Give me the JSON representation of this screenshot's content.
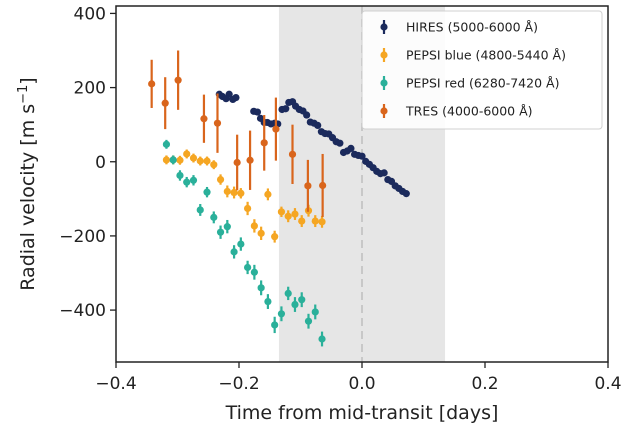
{
  "chart_data": {
    "type": "scatter",
    "xlabel": "Time from mid-transit [days]",
    "ylabel": "Radial velocity [m s",
    "ylabel_sup": "−1",
    "ylabel_tail": "]",
    "xlim": [
      -0.4,
      0.4
    ],
    "ylim": [
      -540,
      420
    ],
    "xticks": [
      -0.4,
      -0.2,
      0.0,
      0.2,
      0.4
    ],
    "xtick_labels": [
      "−0.4",
      "−0.2",
      "0.0",
      "0.2",
      "0.4"
    ],
    "yticks": [
      -400,
      -200,
      0,
      200,
      400
    ],
    "ytick_labels": [
      "−400",
      "−200",
      "0",
      "200",
      "400"
    ],
    "transit_window": [
      -0.135,
      0.135
    ],
    "mid_transit": 0.0,
    "grid": false,
    "legend_position": "top-right",
    "series": [
      {
        "name": "HIRES (5000-6000 Å)",
        "color": "#1b2a5c",
        "points": [
          {
            "x": -0.232,
            "y": 182,
            "err": 8
          },
          {
            "x": -0.227,
            "y": 176,
            "err": 8
          },
          {
            "x": -0.221,
            "y": 170,
            "err": 8
          },
          {
            "x": -0.216,
            "y": 182,
            "err": 8
          },
          {
            "x": -0.21,
            "y": 168,
            "err": 8
          },
          {
            "x": -0.205,
            "y": 173,
            "err": 8
          },
          {
            "x": -0.176,
            "y": 136,
            "err": 8
          },
          {
            "x": -0.17,
            "y": 134,
            "err": 8
          },
          {
            "x": -0.165,
            "y": 117,
            "err": 8
          },
          {
            "x": -0.159,
            "y": 106,
            "err": 8
          },
          {
            "x": -0.154,
            "y": 106,
            "err": 8
          },
          {
            "x": -0.148,
            "y": 102,
            "err": 8
          },
          {
            "x": -0.142,
            "y": 104,
            "err": 8
          },
          {
            "x": -0.137,
            "y": 102,
            "err": 8
          },
          {
            "x": -0.13,
            "y": 141,
            "err": 8
          },
          {
            "x": -0.124,
            "y": 143,
            "err": 8
          },
          {
            "x": -0.119,
            "y": 160,
            "err": 8
          },
          {
            "x": -0.113,
            "y": 162,
            "err": 8
          },
          {
            "x": -0.108,
            "y": 150,
            "err": 8
          },
          {
            "x": -0.102,
            "y": 141,
            "err": 8
          },
          {
            "x": -0.096,
            "y": 137,
            "err": 8
          },
          {
            "x": -0.09,
            "y": 126,
            "err": 8
          },
          {
            "x": -0.084,
            "y": 107,
            "err": 8
          },
          {
            "x": -0.078,
            "y": 104,
            "err": 8
          },
          {
            "x": -0.072,
            "y": 98,
            "err": 8
          },
          {
            "x": -0.066,
            "y": 81,
            "err": 8
          },
          {
            "x": -0.06,
            "y": 76,
            "err": 8
          },
          {
            "x": -0.054,
            "y": 75,
            "err": 8
          },
          {
            "x": -0.048,
            "y": 65,
            "err": 8
          },
          {
            "x": -0.042,
            "y": 54,
            "err": 8
          },
          {
            "x": -0.036,
            "y": 50,
            "err": 8
          },
          {
            "x": -0.03,
            "y": 25,
            "err": 8
          },
          {
            "x": -0.024,
            "y": 29,
            "err": 8
          },
          {
            "x": -0.018,
            "y": 36,
            "err": 8
          },
          {
            "x": -0.012,
            "y": 20,
            "err": 8
          },
          {
            "x": -0.006,
            "y": 17,
            "err": 8
          },
          {
            "x": 0.0,
            "y": 15,
            "err": 8
          },
          {
            "x": 0.006,
            "y": 1,
            "err": 8
          },
          {
            "x": 0.012,
            "y": -7,
            "err": 8
          },
          {
            "x": 0.018,
            "y": -16,
            "err": 8
          },
          {
            "x": 0.024,
            "y": -26,
            "err": 8
          },
          {
            "x": 0.03,
            "y": -32,
            "err": 8
          },
          {
            "x": 0.036,
            "y": -30,
            "err": 8
          },
          {
            "x": 0.042,
            "y": -48,
            "err": 8
          },
          {
            "x": 0.048,
            "y": -53,
            "err": 8
          },
          {
            "x": 0.054,
            "y": -65,
            "err": 8
          },
          {
            "x": 0.06,
            "y": -72,
            "err": 8
          },
          {
            "x": 0.066,
            "y": -80,
            "err": 8
          },
          {
            "x": 0.072,
            "y": -86,
            "err": 8
          }
        ]
      },
      {
        "name": "PEPSI blue (4800-5440 Å)",
        "color": "#f5a623",
        "points": [
          {
            "x": -0.318,
            "y": 5,
            "err": 12
          },
          {
            "x": -0.307,
            "y": 5,
            "err": 12
          },
          {
            "x": -0.296,
            "y": 4,
            "err": 12
          },
          {
            "x": -0.285,
            "y": 21,
            "err": 12
          },
          {
            "x": -0.274,
            "y": 10,
            "err": 12
          },
          {
            "x": -0.263,
            "y": 2,
            "err": 12
          },
          {
            "x": -0.252,
            "y": 2,
            "err": 12
          },
          {
            "x": -0.241,
            "y": -8,
            "err": 12
          },
          {
            "x": -0.23,
            "y": -48,
            "err": 14
          },
          {
            "x": -0.219,
            "y": -80,
            "err": 16
          },
          {
            "x": -0.208,
            "y": -83,
            "err": 16
          },
          {
            "x": -0.197,
            "y": -85,
            "err": 14
          },
          {
            "x": -0.186,
            "y": -126,
            "err": 18
          },
          {
            "x": -0.175,
            "y": -173,
            "err": 18
          },
          {
            "x": -0.164,
            "y": -193,
            "err": 18
          },
          {
            "x": -0.153,
            "y": -88,
            "err": 16
          },
          {
            "x": -0.142,
            "y": -202,
            "err": 16
          },
          {
            "x": -0.131,
            "y": -135,
            "err": 14
          },
          {
            "x": -0.12,
            "y": -147,
            "err": 16
          },
          {
            "x": -0.109,
            "y": -141,
            "err": 16
          },
          {
            "x": -0.098,
            "y": -160,
            "err": 16
          },
          {
            "x": -0.087,
            "y": -132,
            "err": 16
          },
          {
            "x": -0.076,
            "y": -160,
            "err": 16
          },
          {
            "x": -0.065,
            "y": -162,
            "err": 16
          }
        ]
      },
      {
        "name": "PEPSI red (6280-7420 Å)",
        "color": "#2ab09a",
        "points": [
          {
            "x": -0.318,
            "y": 47,
            "err": 12
          },
          {
            "x": -0.307,
            "y": 5,
            "err": 12
          },
          {
            "x": -0.296,
            "y": -37,
            "err": 14
          },
          {
            "x": -0.285,
            "y": -55,
            "err": 14
          },
          {
            "x": -0.274,
            "y": -50,
            "err": 14
          },
          {
            "x": -0.263,
            "y": -130,
            "err": 16
          },
          {
            "x": -0.252,
            "y": -82,
            "err": 14
          },
          {
            "x": -0.241,
            "y": -150,
            "err": 16
          },
          {
            "x": -0.23,
            "y": -190,
            "err": 18
          },
          {
            "x": -0.219,
            "y": -175,
            "err": 18
          },
          {
            "x": -0.208,
            "y": -243,
            "err": 18
          },
          {
            "x": -0.197,
            "y": -222,
            "err": 18
          },
          {
            "x": -0.186,
            "y": -285,
            "err": 18
          },
          {
            "x": -0.175,
            "y": -298,
            "err": 20
          },
          {
            "x": -0.164,
            "y": -340,
            "err": 20
          },
          {
            "x": -0.153,
            "y": -377,
            "err": 20
          },
          {
            "x": -0.142,
            "y": -440,
            "err": 22
          },
          {
            "x": -0.131,
            "y": -410,
            "err": 20
          },
          {
            "x": -0.12,
            "y": -355,
            "err": 18
          },
          {
            "x": -0.109,
            "y": -385,
            "err": 20
          },
          {
            "x": -0.098,
            "y": -372,
            "err": 20
          },
          {
            "x": -0.087,
            "y": -430,
            "err": 20
          },
          {
            "x": -0.076,
            "y": -405,
            "err": 20
          },
          {
            "x": -0.065,
            "y": -478,
            "err": 20
          }
        ]
      },
      {
        "name": "TRES (4000-6000 Å)",
        "color": "#d9651c",
        "points": [
          {
            "x": -0.342,
            "y": 210,
            "err": 65
          },
          {
            "x": -0.32,
            "y": 158,
            "err": 70
          },
          {
            "x": -0.299,
            "y": 220,
            "err": 80
          },
          {
            "x": -0.257,
            "y": 116,
            "err": 65
          },
          {
            "x": -0.235,
            "y": 104,
            "err": 80
          },
          {
            "x": -0.203,
            "y": -2,
            "err": 75
          },
          {
            "x": -0.182,
            "y": 4,
            "err": 80
          },
          {
            "x": -0.159,
            "y": 51,
            "err": 75
          },
          {
            "x": -0.14,
            "y": 88,
            "err": 85
          },
          {
            "x": -0.113,
            "y": 20,
            "err": 80
          },
          {
            "x": -0.088,
            "y": -65,
            "err": 70
          },
          {
            "x": -0.064,
            "y": -64,
            "err": 85
          }
        ]
      }
    ]
  }
}
